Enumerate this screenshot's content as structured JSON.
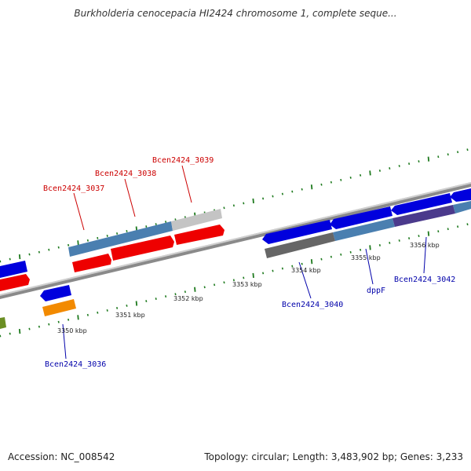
{
  "title": "Burkholderia cenocepacia HI2424 chromosome 1, complete seque...",
  "footer": {
    "accession": "Accession: NC_008542",
    "summary": "Topology: circular; Length: 3,483,902 bp; Genes: 3,233"
  },
  "kbp_labels": [
    "3350 kbp",
    "3351 kbp",
    "3352 kbp",
    "3353 kbp",
    "3354 kbp",
    "3355 kbp",
    "3356 kbp"
  ],
  "gene_labels": [
    {
      "text": "Bcen2424_3037",
      "color": "#cc0000"
    },
    {
      "text": "Bcen2424_3038",
      "color": "#cc0000"
    },
    {
      "text": "Bcen2424_3039",
      "color": "#cc0000"
    },
    {
      "text": "Bcen2424_3036",
      "color": "#0000aa"
    },
    {
      "text": "Bcen2424_3040",
      "color": "#0000aa"
    },
    {
      "text": "dppF",
      "color": "#0000aa"
    },
    {
      "text": "Bcen2424_3042",
      "color": "#0000aa"
    }
  ],
  "colors": {
    "forward_gene": "#ee0000",
    "reverse_gene": "#0000dd",
    "cds_steel_blue": "#4a7fb0",
    "cds_gray": "#bbbbbb",
    "cds_dark_gray": "#666666",
    "cds_purple": "#4b3a8c",
    "cds_orange": "#f28a00",
    "cds_olive": "#6b8e23",
    "tick_green": "#1e7a1e",
    "backbone": "#888888"
  }
}
